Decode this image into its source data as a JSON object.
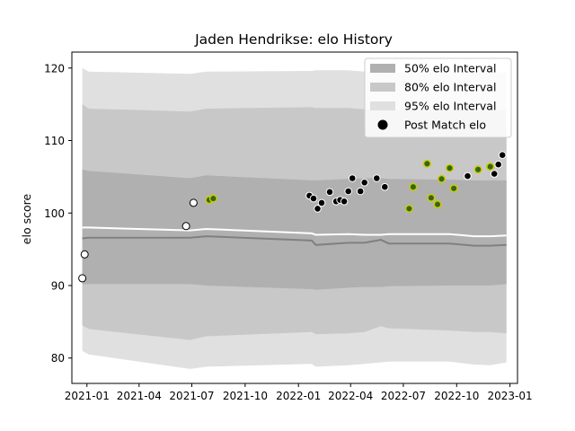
{
  "chart_data": {
    "type": "line",
    "title": "Jaden Hendrikse: elo History",
    "xlabel": "",
    "ylabel": "elo score",
    "xlim": [
      "2020-12-06",
      "2023-01-14"
    ],
    "ylim": [
      76.5,
      122.2
    ],
    "x_ticks": [
      "2021-01-01",
      "2021-04-01",
      "2021-07-01",
      "2021-10-01",
      "2022-01-01",
      "2022-04-01",
      "2022-07-01",
      "2022-10-01",
      "2023-01-01"
    ],
    "x_tick_labels": [
      "2021-01",
      "2021-04",
      "2021-07",
      "2021-10",
      "2022-01",
      "2022-04",
      "2022-07",
      "2022-10",
      "2023-01"
    ],
    "y_ticks": [
      80,
      90,
      100,
      110,
      120
    ],
    "y_tick_labels": [
      "80",
      "90",
      "100",
      "110",
      "120"
    ],
    "grid": false,
    "legend_position": "top-right",
    "legend": [
      {
        "label": "50% elo Interval",
        "color": "#b0b0b0"
      },
      {
        "label": "80% elo Interval",
        "color": "#c8c8c8"
      },
      {
        "label": "95% elo Interval",
        "color": "#e0e0e0"
      },
      {
        "label": "Post Match elo",
        "color": "#000000"
      }
    ],
    "band_x": [
      "2020-12-24",
      "2021-01-04",
      "2021-06-28",
      "2021-07-26",
      "2022-01-24",
      "2022-01-31",
      "2022-03-28",
      "2022-04-25",
      "2022-05-23",
      "2022-06-06",
      "2022-09-19",
      "2022-10-31",
      "2022-11-28",
      "2022-12-26"
    ],
    "band_95_upper": [
      120.0,
      119.5,
      119.2,
      119.5,
      119.6,
      119.7,
      119.7,
      119.5,
      119.2,
      119.4,
      119.4,
      119.4,
      119.4,
      119.4
    ],
    "band_95_lower": [
      81.0,
      80.5,
      78.5,
      78.8,
      79.2,
      78.8,
      79.0,
      79.2,
      79.4,
      79.5,
      79.5,
      79.1,
      79.0,
      79.4
    ],
    "band_80_upper": [
      115.0,
      114.4,
      114.0,
      114.4,
      114.6,
      114.5,
      114.5,
      114.3,
      114.1,
      114.3,
      114.3,
      114.2,
      114.1,
      114.3
    ],
    "band_80_lower": [
      84.5,
      84.0,
      82.5,
      83.0,
      83.6,
      83.3,
      83.4,
      83.6,
      84.4,
      84.1,
      83.8,
      83.6,
      83.6,
      83.4
    ],
    "band_50_upper": [
      106.0,
      105.8,
      104.8,
      105.2,
      104.5,
      104.5,
      104.7,
      104.8,
      104.8,
      104.7,
      104.6,
      104.5,
      104.5,
      104.5
    ],
    "band_50_lower": [
      90.2,
      90.2,
      90.2,
      90.0,
      89.5,
      89.4,
      89.7,
      89.8,
      89.8,
      89.9,
      90.0,
      90.0,
      90.0,
      90.2
    ],
    "mean_line": [
      98.0,
      98.0,
      97.6,
      97.8,
      97.2,
      97.0,
      97.1,
      97.0,
      97.0,
      97.1,
      97.1,
      96.8,
      96.8,
      96.9
    ],
    "median_line": [
      96.5,
      96.6,
      96.6,
      96.8,
      96.2,
      95.6,
      95.9,
      95.9,
      96.3,
      95.8,
      95.8,
      95.5,
      95.5,
      95.6
    ],
    "points": [
      {
        "x": "2020-12-24",
        "y": 91.0,
        "style": "white"
      },
      {
        "x": "2020-12-28",
        "y": 94.3,
        "style": "white"
      },
      {
        "x": "2021-06-21",
        "y": 98.2,
        "style": "white"
      },
      {
        "x": "2021-07-04",
        "y": 101.4,
        "style": "white"
      },
      {
        "x": "2021-07-31",
        "y": 101.8,
        "style": "highlight"
      },
      {
        "x": "2021-08-07",
        "y": 102.0,
        "style": "highlight"
      },
      {
        "x": "2022-01-20",
        "y": 102.4,
        "style": "black"
      },
      {
        "x": "2022-01-27",
        "y": 102.0,
        "style": "black"
      },
      {
        "x": "2022-02-03",
        "y": 100.6,
        "style": "black"
      },
      {
        "x": "2022-02-10",
        "y": 101.4,
        "style": "black"
      },
      {
        "x": "2022-02-24",
        "y": 102.9,
        "style": "black"
      },
      {
        "x": "2022-03-07",
        "y": 101.6,
        "style": "black"
      },
      {
        "x": "2022-03-14",
        "y": 101.8,
        "style": "black"
      },
      {
        "x": "2022-03-21",
        "y": 101.6,
        "style": "black"
      },
      {
        "x": "2022-03-28",
        "y": 103.0,
        "style": "black"
      },
      {
        "x": "2022-04-04",
        "y": 104.8,
        "style": "black"
      },
      {
        "x": "2022-04-18",
        "y": 103.0,
        "style": "black"
      },
      {
        "x": "2022-04-25",
        "y": 104.2,
        "style": "black"
      },
      {
        "x": "2022-05-16",
        "y": 104.8,
        "style": "black"
      },
      {
        "x": "2022-05-30",
        "y": 103.6,
        "style": "black"
      },
      {
        "x": "2022-07-11",
        "y": 100.6,
        "style": "highlight"
      },
      {
        "x": "2022-07-18",
        "y": 103.6,
        "style": "highlight"
      },
      {
        "x": "2022-08-11",
        "y": 106.8,
        "style": "highlight"
      },
      {
        "x": "2022-08-18",
        "y": 102.1,
        "style": "highlight"
      },
      {
        "x": "2022-08-29",
        "y": 101.2,
        "style": "highlight"
      },
      {
        "x": "2022-09-05",
        "y": 104.7,
        "style": "highlight"
      },
      {
        "x": "2022-09-19",
        "y": 106.2,
        "style": "highlight"
      },
      {
        "x": "2022-09-26",
        "y": 103.4,
        "style": "highlight"
      },
      {
        "x": "2022-10-20",
        "y": 105.1,
        "style": "black"
      },
      {
        "x": "2022-11-07",
        "y": 106.0,
        "style": "highlight"
      },
      {
        "x": "2022-11-28",
        "y": 106.4,
        "style": "highlight"
      },
      {
        "x": "2022-12-05",
        "y": 105.4,
        "style": "black"
      },
      {
        "x": "2022-12-12",
        "y": 106.7,
        "style": "black"
      },
      {
        "x": "2022-12-19",
        "y": 108.0,
        "style": "black"
      }
    ],
    "colors": {
      "band_95": "#e0e0e0",
      "band_80": "#c8c8c8",
      "band_50": "#b0b0b0",
      "mean_line": "#ffffff",
      "median_line": "#808080",
      "point_black": "#000000",
      "point_white": "#ffffff",
      "point_highlight_fill": "#2e6b12",
      "point_highlight_edge": "#d2c800"
    }
  }
}
